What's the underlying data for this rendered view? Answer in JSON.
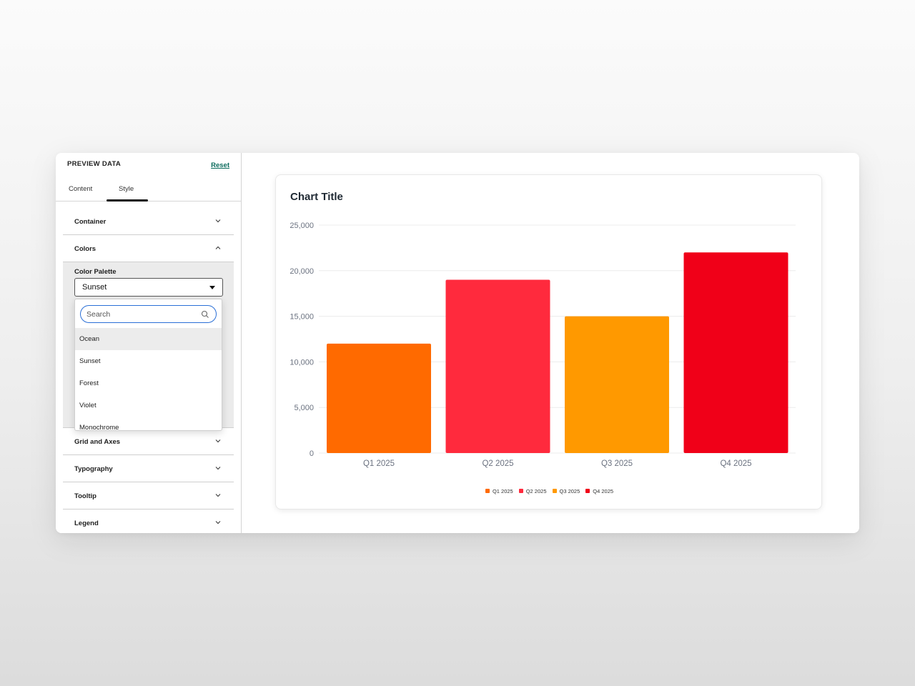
{
  "panel": {
    "title": "PREVIEW DATA",
    "reset_label": "Reset",
    "tabs": [
      {
        "label": "Content",
        "active": false
      },
      {
        "label": "Style",
        "active": true
      }
    ],
    "sections": {
      "container": "Container",
      "colors": "Colors",
      "grid_axes": "Grid and Axes",
      "typography": "Typography",
      "tooltip": "Tooltip",
      "legend": "Legend"
    },
    "color_palette": {
      "label": "Color Palette",
      "selected": "Sunset",
      "search_placeholder": "Search",
      "options": [
        "Ocean",
        "Sunset",
        "Forest",
        "Violet",
        "Monochrome"
      ],
      "highlighted": "Ocean"
    }
  },
  "icons": {
    "chevron": "chevron-down-icon",
    "chevron_up": "chevron-up-icon",
    "search": "search-icon",
    "caret": "caret-down-icon"
  },
  "chart_data": {
    "type": "bar",
    "title": "Chart Title",
    "categories": [
      "Q1 2025",
      "Q2 2025",
      "Q3 2025",
      "Q4 2025"
    ],
    "values": [
      12000,
      19000,
      15000,
      22000
    ],
    "colors": [
      "#ff6a00",
      "#ff2a3d",
      "#ff9900",
      "#f00018"
    ],
    "ylim": [
      0,
      25000
    ],
    "yticks": [
      0,
      5000,
      10000,
      15000,
      20000,
      25000
    ],
    "ytick_labels": [
      "0",
      "5,000",
      "10,000",
      "15,000",
      "20,000",
      "25,000"
    ],
    "grid": true,
    "legend": [
      "Q1 2025",
      "Q2 2025",
      "Q3 2025",
      "Q4 2025"
    ],
    "legend_position": "bottom"
  }
}
